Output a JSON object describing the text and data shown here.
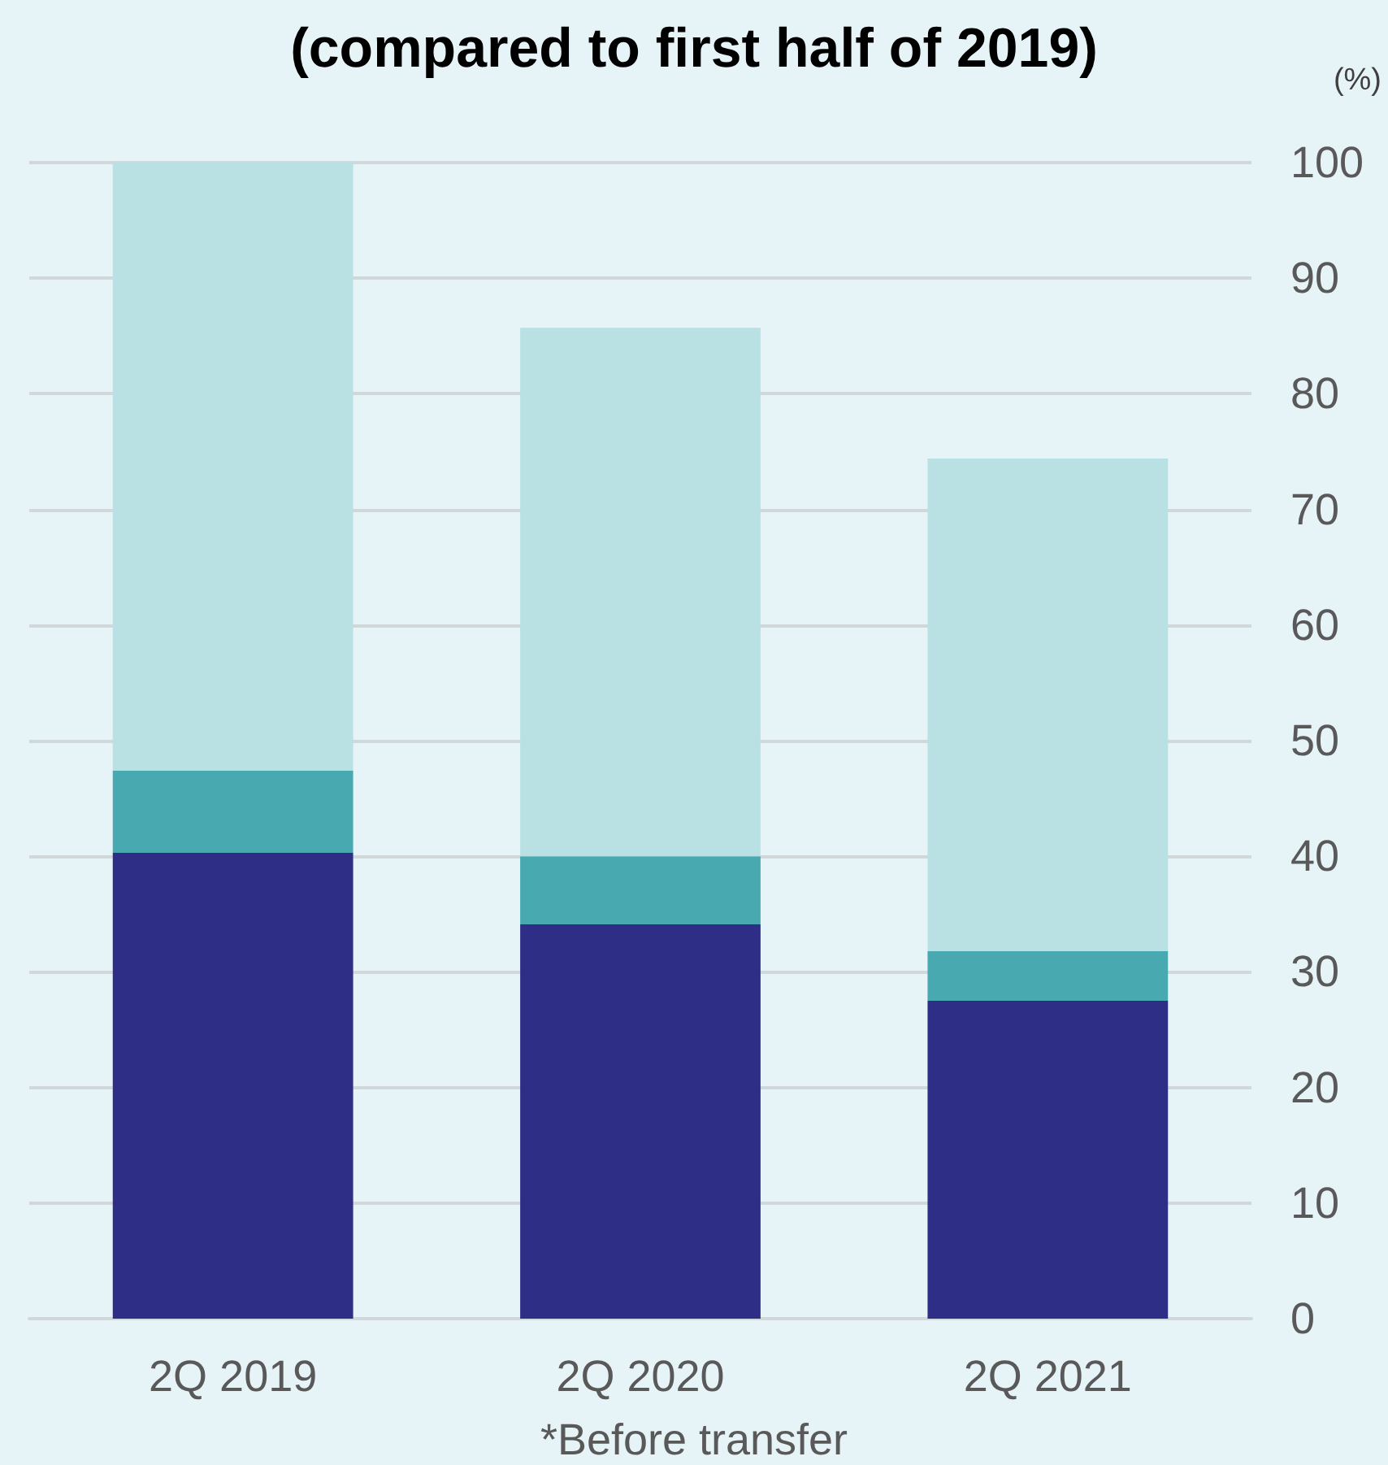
{
  "chart_data": {
    "type": "bar",
    "title": "(compared to first half of 2019)",
    "ylabel": "(%)",
    "categories": [
      "2Q 2019",
      "2Q 2020",
      "2Q 2021"
    ],
    "stacked": true,
    "series": [
      {
        "color": "#2e2e87",
        "values": [
          40.3,
          34.1,
          27.5
        ]
      },
      {
        "color": "#48a9b0",
        "values": [
          7.1,
          5.9,
          4.3
        ]
      },
      {
        "color": "#b9e0e3",
        "values": [
          52.6,
          45.7,
          42.6
        ]
      }
    ],
    "ylim": [
      0,
      100
    ],
    "yticks": [
      0,
      10,
      20,
      30,
      40,
      50,
      60,
      70,
      80,
      90,
      100
    ],
    "grid": "y",
    "annotations": [
      "*Before transfer"
    ]
  }
}
